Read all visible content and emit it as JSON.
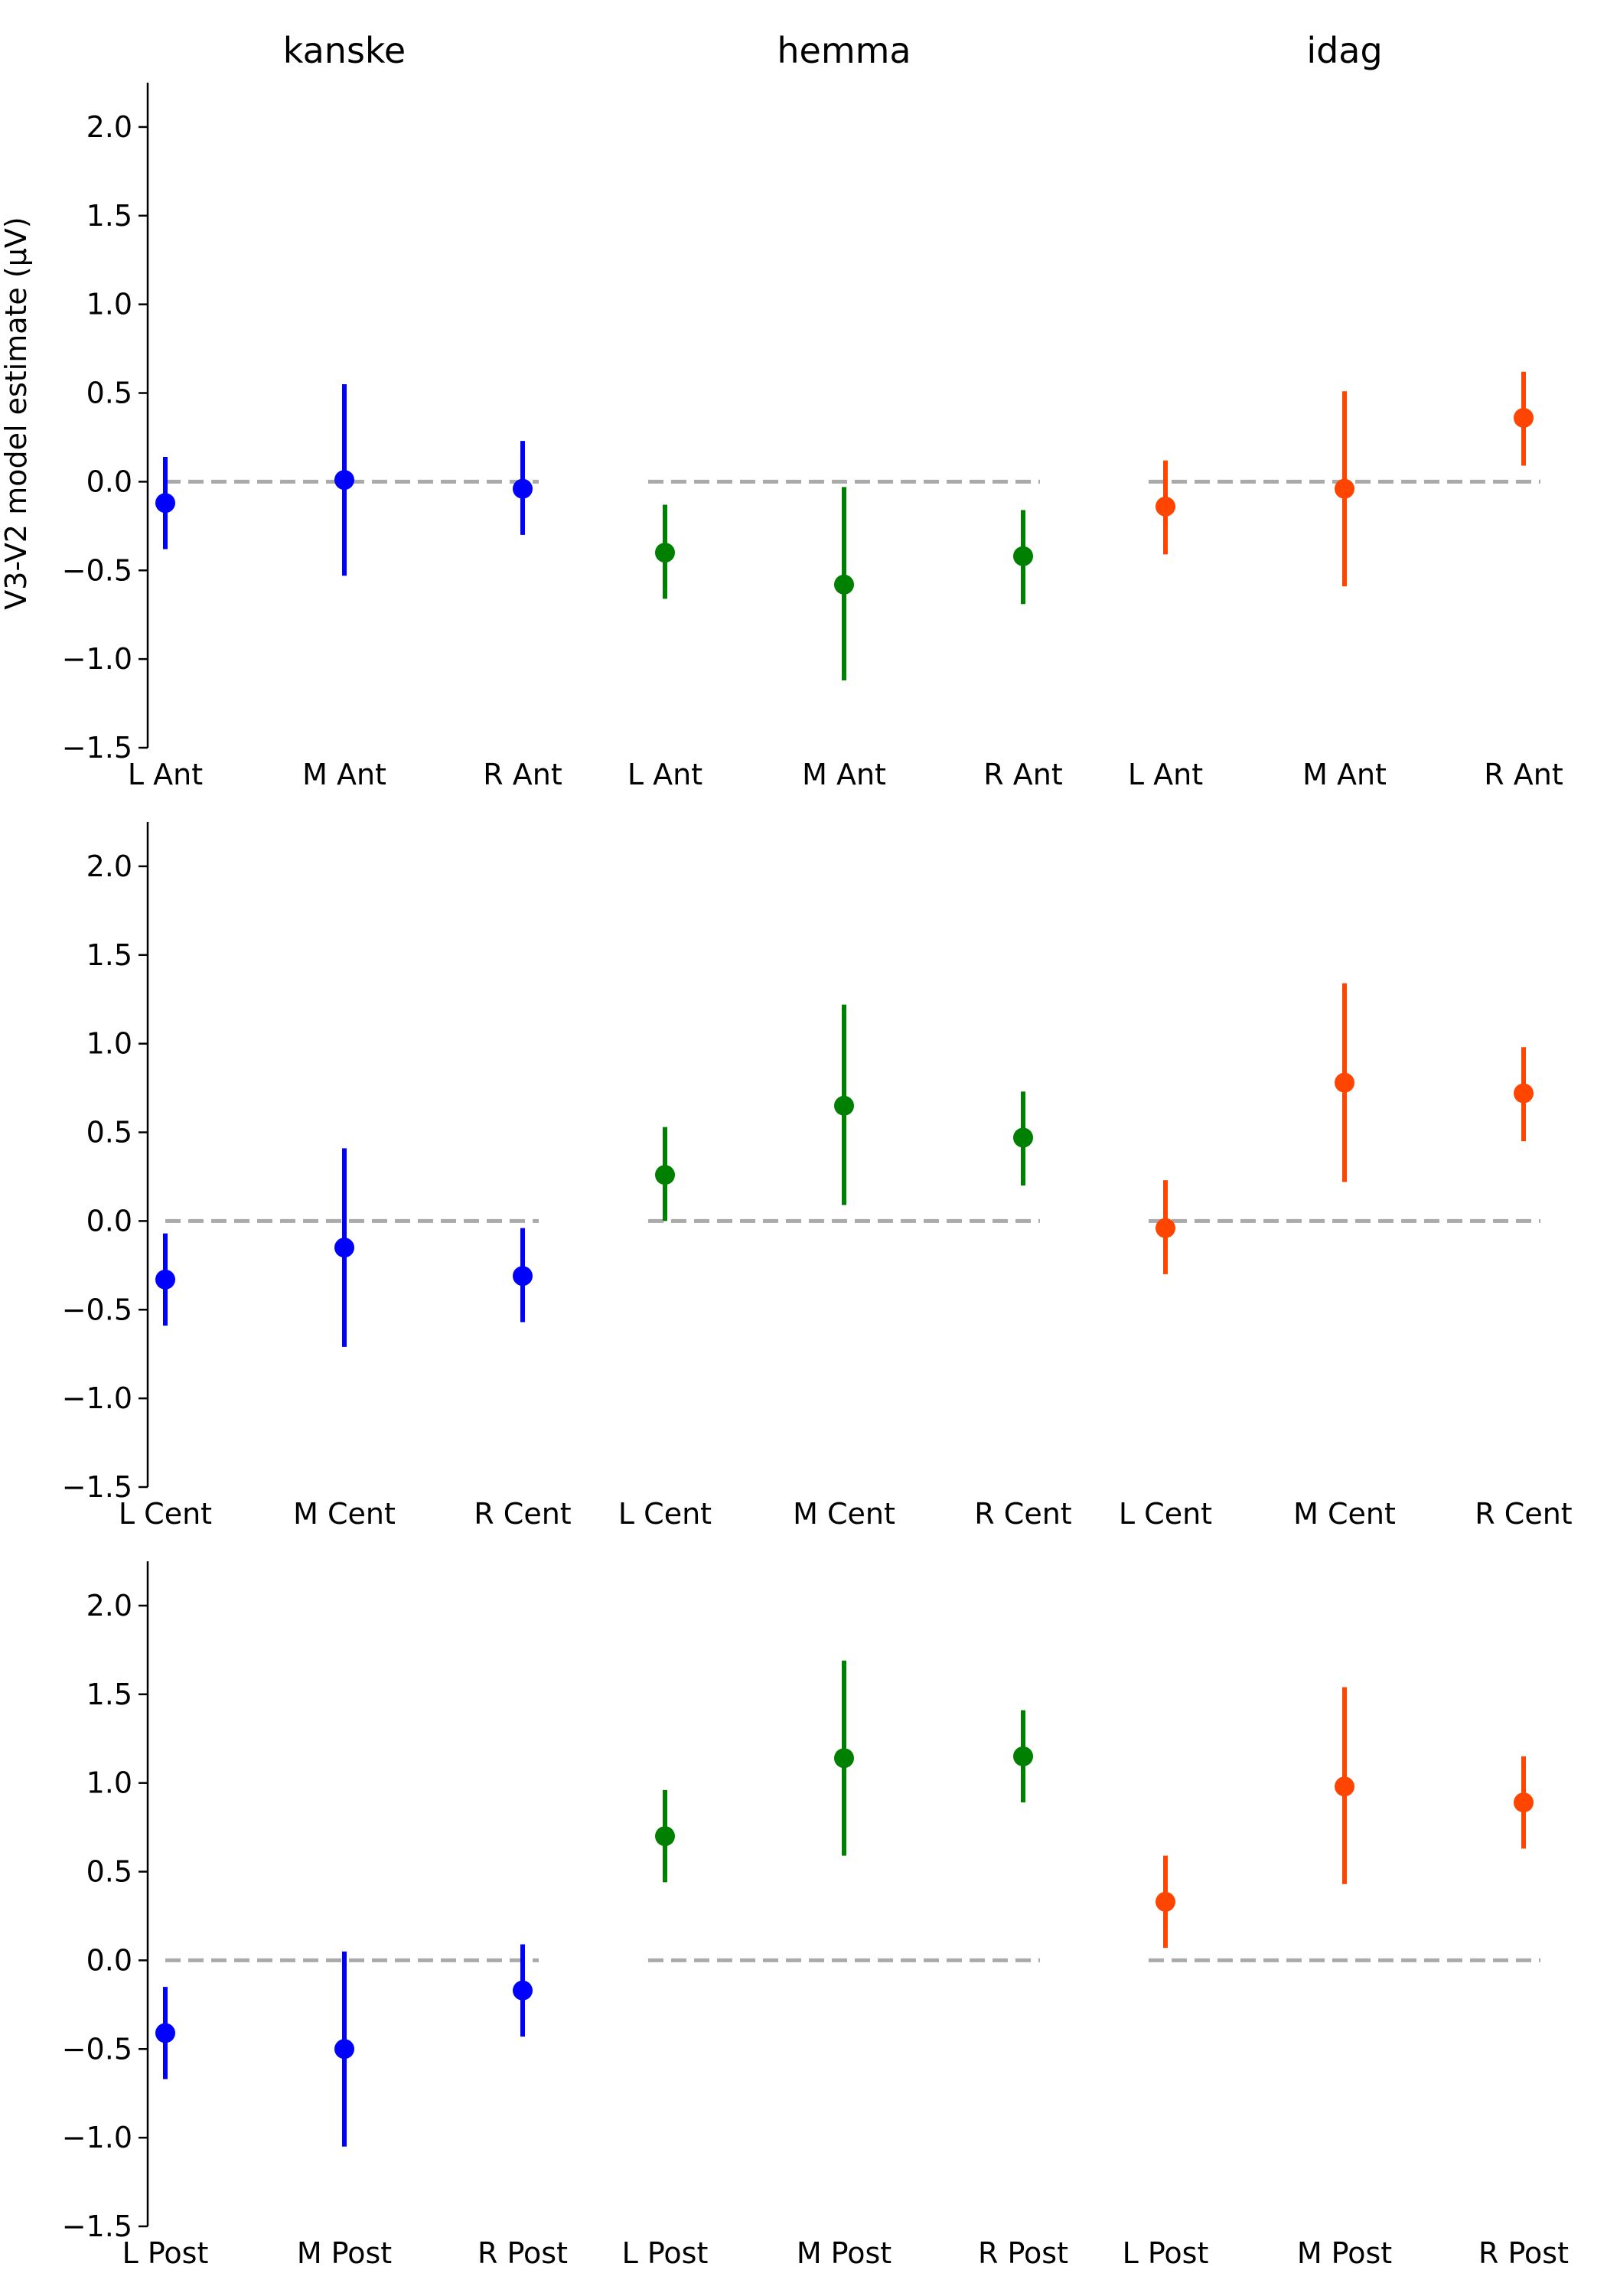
{
  "chart_data": {
    "type": "scatter",
    "ylabel": "V3-V2 model estimate (μV)",
    "ylim": [
      -1.5,
      2.25
    ],
    "yticks": [
      -1.5,
      -1.0,
      -0.5,
      0.0,
      0.5,
      1.0,
      1.5,
      2.0
    ],
    "ytick_labels": [
      "−1.5",
      "−1.0",
      "−0.5",
      "0.0",
      "0.5",
      "1.0",
      "1.5",
      "2.0"
    ],
    "reference_line": 0.0,
    "grid": false,
    "groups": [
      {
        "name": "kanske",
        "color": "#0000ff"
      },
      {
        "name": "hemma",
        "color": "#008000"
      },
      {
        "name": "idag",
        "color": "#ff4500"
      }
    ],
    "reference_line_color": "#aaaaaa",
    "rows": [
      {
        "region": "Ant",
        "categories": [
          "L Ant",
          "M Ant",
          "R Ant"
        ],
        "series": [
          {
            "group": "kanske",
            "values": [
              -0.12,
              0.01,
              -0.04
            ],
            "lower": [
              -0.38,
              -0.53,
              -0.3
            ],
            "upper": [
              0.14,
              0.55,
              0.23
            ]
          },
          {
            "group": "hemma",
            "values": [
              -0.4,
              -0.58,
              -0.42
            ],
            "lower": [
              -0.66,
              -1.12,
              -0.69
            ],
            "upper": [
              -0.13,
              -0.03,
              -0.16
            ]
          },
          {
            "group": "idag",
            "values": [
              -0.14,
              -0.04,
              0.36
            ],
            "lower": [
              -0.41,
              -0.59,
              0.09
            ],
            "upper": [
              0.12,
              0.51,
              0.62
            ]
          }
        ]
      },
      {
        "region": "Cent",
        "categories": [
          "L Cent",
          "M Cent",
          "R Cent"
        ],
        "series": [
          {
            "group": "kanske",
            "values": [
              -0.33,
              -0.15,
              -0.31
            ],
            "lower": [
              -0.59,
              -0.71,
              -0.57
            ],
            "upper": [
              -0.07,
              0.41,
              -0.04
            ]
          },
          {
            "group": "hemma",
            "values": [
              0.26,
              0.65,
              0.47
            ],
            "lower": [
              0.0,
              0.09,
              0.2
            ],
            "upper": [
              0.53,
              1.22,
              0.73
            ]
          },
          {
            "group": "idag",
            "values": [
              -0.04,
              0.78,
              0.72
            ],
            "lower": [
              -0.3,
              0.22,
              0.45
            ],
            "upper": [
              0.23,
              1.34,
              0.98
            ]
          }
        ]
      },
      {
        "region": "Post",
        "categories": [
          "L Post",
          "M Post",
          "R Post"
        ],
        "series": [
          {
            "group": "kanske",
            "values": [
              -0.41,
              -0.5,
              -0.17
            ],
            "lower": [
              -0.67,
              -1.05,
              -0.43
            ],
            "upper": [
              -0.15,
              0.05,
              0.09
            ]
          },
          {
            "group": "hemma",
            "values": [
              0.7,
              1.14,
              1.15
            ],
            "lower": [
              0.44,
              0.59,
              0.89
            ],
            "upper": [
              0.96,
              1.69,
              1.41
            ]
          },
          {
            "group": "idag",
            "values": [
              0.33,
              0.98,
              0.89
            ],
            "lower": [
              0.07,
              0.43,
              0.63
            ],
            "upper": [
              0.59,
              1.54,
              1.15
            ]
          }
        ]
      }
    ]
  }
}
